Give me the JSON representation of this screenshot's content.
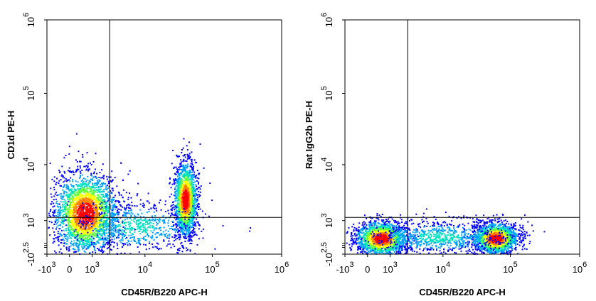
{
  "chart_data": [
    {
      "type": "scatter",
      "subtype": "flow-cytometry-density-dot-plot",
      "xlabel": "CD45R/B220 APC-H",
      "ylabel": "CD1d PE-H",
      "x_scale": "biexponential",
      "y_scale": "biexponential",
      "x_ticks": [
        {
          "base": "-10",
          "exp": "3"
        },
        {
          "base": "0",
          "exp": ""
        },
        {
          "base": "10",
          "exp": "3"
        },
        {
          "base": "10",
          "exp": "4"
        },
        {
          "base": "10",
          "exp": "5"
        },
        {
          "base": "10",
          "exp": "6"
        }
      ],
      "y_ticks": [
        {
          "base": "-10",
          "exp": "2.5"
        },
        {
          "base": "10",
          "exp": "3"
        },
        {
          "base": "10",
          "exp": "4"
        },
        {
          "base": "10",
          "exp": "5"
        },
        {
          "base": "10",
          "exp": "6"
        }
      ],
      "gates": {
        "x": 2500,
        "y": 1200
      },
      "populations": [
        {
          "name": "",
          "x_center": 600,
          "y_center": 1500,
          "density": "high"
        },
        {
          "name": "",
          "x_center": 40000,
          "y_center": 2800,
          "density": "high"
        }
      ],
      "grid": false,
      "legend": "none"
    },
    {
      "type": "scatter",
      "subtype": "flow-cytometry-density-dot-plot",
      "xlabel": "CD45R/B220 APC-H",
      "ylabel": "Rat IgG2b PE-H",
      "x_scale": "biexponential",
      "y_scale": "biexponential",
      "x_ticks": [
        {
          "base": "-10",
          "exp": "3"
        },
        {
          "base": "0",
          "exp": ""
        },
        {
          "base": "10",
          "exp": "3"
        },
        {
          "base": "10",
          "exp": "4"
        },
        {
          "base": "10",
          "exp": "5"
        },
        {
          "base": "10",
          "exp": "6"
        }
      ],
      "y_ticks": [
        {
          "base": "-10",
          "exp": "2.5"
        },
        {
          "base": "10",
          "exp": "3"
        },
        {
          "base": "10",
          "exp": "4"
        },
        {
          "base": "10",
          "exp": "5"
        },
        {
          "base": "10",
          "exp": "6"
        }
      ],
      "gates": {
        "x": 2500,
        "y": 1200
      },
      "populations": [
        {
          "name": "",
          "x_center": 500,
          "y_center": 200,
          "density": "high"
        },
        {
          "name": "",
          "x_center": 60000,
          "y_center": 200,
          "density": "high"
        }
      ],
      "grid": false,
      "legend": "none"
    }
  ],
  "colors": {
    "density_scale": [
      "#0000ff",
      "#00a0ff",
      "#00e0c0",
      "#60ff40",
      "#ffff00",
      "#ff8000",
      "#ff0000"
    ],
    "frame": "#000000",
    "gate_line": "#000000"
  }
}
